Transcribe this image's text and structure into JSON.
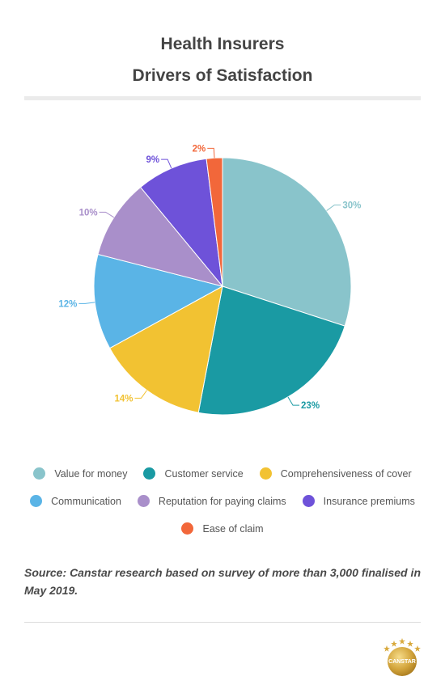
{
  "title_line1": "Health Insurers",
  "title_line2": "Drivers of Satisfaction",
  "chart_data": {
    "type": "pie",
    "title": "Health Insurers Drivers of Satisfaction",
    "series": [
      {
        "name": "Value for money",
        "value": 30,
        "label": "30%",
        "color": "#89c4cb"
      },
      {
        "name": "Customer service",
        "value": 23,
        "label": "23%",
        "color": "#1a9aa3"
      },
      {
        "name": "Comprehensiveness of cover",
        "value": 14,
        "label": "14%",
        "color": "#f2c232"
      },
      {
        "name": "Communication",
        "value": 12,
        "label": "12%",
        "color": "#5ab4e6"
      },
      {
        "name": "Reputation for paying claims",
        "value": 10,
        "label": "10%",
        "color": "#a98fca"
      },
      {
        "name": "Insurance premiums",
        "value": 9,
        "label": "9%",
        "color": "#6e52d9"
      },
      {
        "name": "Ease of claim",
        "value": 2,
        "label": "2%",
        "color": "#f2673a"
      }
    ],
    "legend_position": "bottom"
  },
  "source": "Source: Canstar research based on survey of more than 3,000 finalised in May 2019.",
  "logo_text": "CANSTAR"
}
